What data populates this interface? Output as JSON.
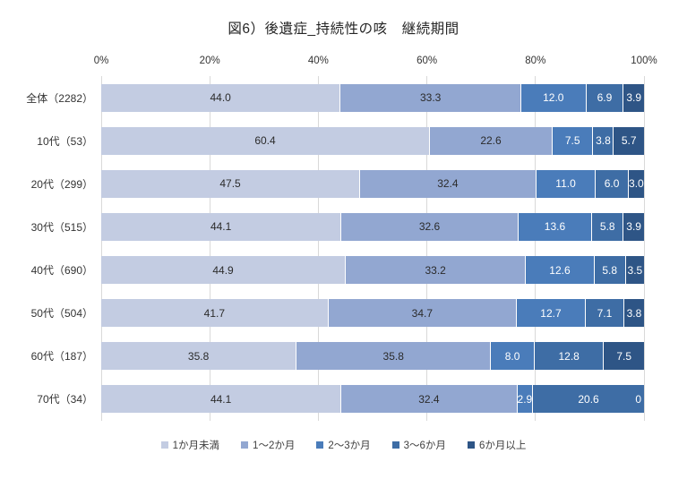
{
  "title": "図6）後遺症_持続性の咳　継続期間",
  "chart_data": {
    "type": "bar",
    "subtype": "horizontal-stacked-percent",
    "title": "図6）後遺症_持続性の咳　継続期間",
    "categories": [
      "全体（2282）",
      "10代（53）",
      "20代（299）",
      "30代（515）",
      "40代（690）",
      "50代（504）",
      "60代（187）",
      "70代（34）"
    ],
    "series": [
      {
        "name": "1か月未満",
        "color": "#c3cce2",
        "label_color": "#2b2b2b",
        "values": [
          44.0,
          60.4,
          47.5,
          44.1,
          44.9,
          41.7,
          35.8,
          44.1
        ]
      },
      {
        "name": "1～2か月",
        "color": "#92a7d1",
        "label_color": "#2b2b2b",
        "values": [
          33.3,
          22.6,
          32.4,
          32.6,
          33.2,
          34.7,
          35.8,
          32.4
        ]
      },
      {
        "name": "2～3か月",
        "color": "#4a7cba",
        "label_color": "#ffffff",
        "values": [
          12.0,
          7.5,
          11.0,
          13.6,
          12.6,
          12.7,
          8.0,
          2.9
        ]
      },
      {
        "name": "3～6か月",
        "color": "#3e6da5",
        "label_color": "#ffffff",
        "values": [
          6.9,
          3.8,
          6.0,
          5.8,
          5.8,
          7.1,
          12.8,
          20.6
        ]
      },
      {
        "name": "6か月以上",
        "color": "#2e5586",
        "label_color": "#ffffff",
        "values": [
          3.9,
          5.7,
          3.0,
          3.9,
          3.5,
          3.8,
          7.5,
          0
        ]
      }
    ],
    "x_axis": {
      "tick_labels": [
        "0%",
        "20%",
        "40%",
        "60%",
        "80%",
        "100%"
      ],
      "tick_values": [
        0,
        20,
        40,
        60,
        80,
        100
      ],
      "position": "top",
      "xlim": [
        0,
        100
      ]
    },
    "grid": {
      "vertical": true,
      "color": "#d9d9d9"
    },
    "legend_position": "bottom",
    "zero_value_display": "0"
  }
}
